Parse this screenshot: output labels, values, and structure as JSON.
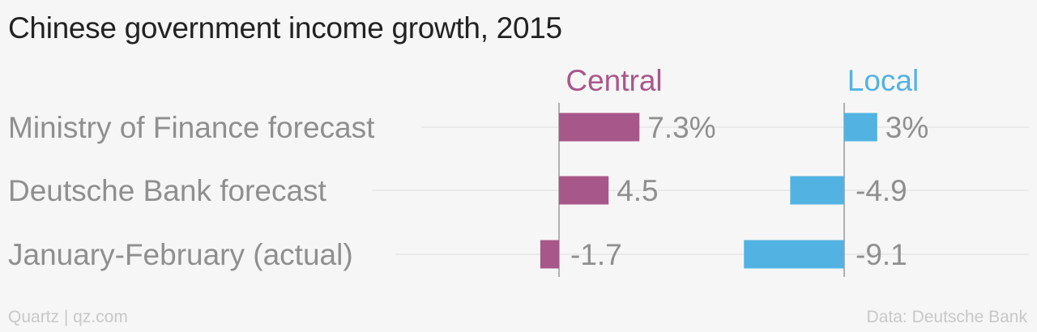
{
  "title": "Chinese government income growth, 2015",
  "footer": {
    "source_left": "Quartz | qz.com",
    "source_right": "Data: Deutsche Bank"
  },
  "colors": {
    "central": "#a8578a",
    "local": "#52b3e3",
    "label": "#8f8f8f",
    "gridline": "#e6e6e6",
    "axis": "#9a9a9a",
    "background": "#f7f6f6"
  },
  "chart_data": {
    "type": "bar",
    "orientation": "horizontal",
    "title": "Chinese government income growth, 2015",
    "categories": [
      "Ministry of Finance forecast",
      "Deutsche Bank forecast",
      "January-February (actual)"
    ],
    "series": [
      {
        "name": "Central",
        "values": [
          7.3,
          4.5,
          -1.7
        ],
        "labels": [
          "7.3%",
          "4.5",
          "-1.7"
        ]
      },
      {
        "name": "Local",
        "values": [
          3,
          -4.9,
          -9.1
        ],
        "labels": [
          "3%",
          "-4.9",
          "-9.1"
        ]
      }
    ],
    "unit": "%",
    "grid": true,
    "legend": "top"
  }
}
